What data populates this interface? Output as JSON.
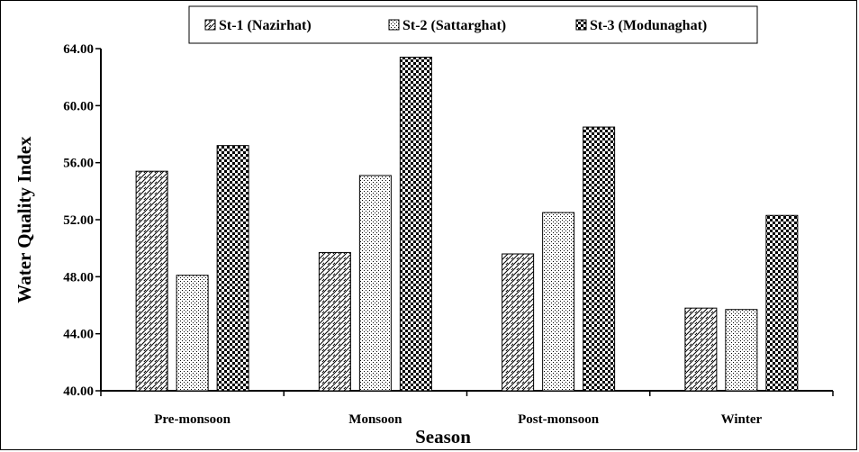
{
  "chart_data": {
    "type": "bar",
    "categories": [
      "Pre-monsoon",
      "Monsoon",
      "Post-monsoon",
      "Winter"
    ],
    "series": [
      {
        "name": "St-1 (Nazirhat)",
        "values": [
          55.4,
          49.7,
          49.6,
          45.8
        ],
        "pattern": "diagonal-hatch"
      },
      {
        "name": "St-2 (Sattarghat)",
        "values": [
          48.1,
          55.1,
          52.5,
          45.7
        ],
        "pattern": "dots"
      },
      {
        "name": "St-3 (Modunaghat)",
        "values": [
          57.2,
          63.4,
          58.5,
          52.3
        ],
        "pattern": "checkerboard"
      }
    ],
    "xlabel": "Season",
    "ylabel": "Water Quality Index",
    "ylim": [
      40,
      64
    ],
    "yticks": [
      "40.00",
      "44.00",
      "48.00",
      "52.00",
      "56.00",
      "60.00",
      "64.00"
    ],
    "grid": false,
    "legend_position": "top-center"
  }
}
